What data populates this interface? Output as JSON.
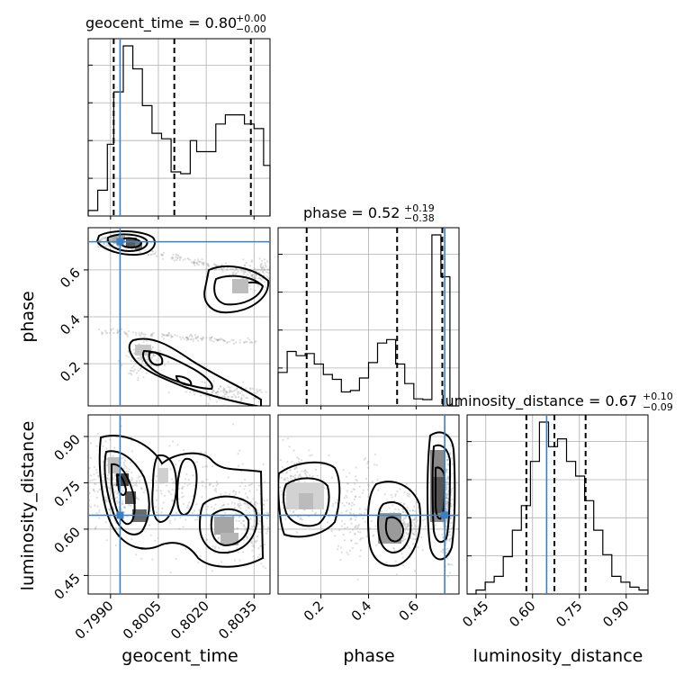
{
  "chart_data": {
    "type": "corner",
    "parameters": [
      "geocent_time",
      "phase",
      "luminosity_distance"
    ],
    "axis_labels": [
      "geocent_time",
      "phase",
      "luminosity_distance"
    ],
    "colors": {
      "truth": "#3b7fc4",
      "contour": "#000000",
      "grid": "#b0b0b0",
      "points": "#a0a0a0"
    },
    "grid": true,
    "truths": {
      "geocent_time": 0.7993,
      "phase": 0.72,
      "luminosity_distance": 0.645
    },
    "ranges": {
      "geocent_time": [
        0.7983,
        0.804
      ],
      "phase": [
        0.02,
        0.78
      ],
      "luminosity_distance": [
        0.39,
        0.97
      ]
    },
    "ticks": {
      "geocent_time": [
        "0.7990",
        "0.8005",
        "0.8020",
        "0.8035"
      ],
      "phase": [
        "0.2",
        "0.4",
        "0.6"
      ],
      "luminosity_distance": [
        "0.45",
        "0.60",
        "0.75",
        "0.90"
      ]
    },
    "titles": [
      {
        "param": "geocent_time",
        "name": "geocent_time",
        "median": "0.80",
        "plus": "+0.00",
        "minus": "−0.00"
      },
      {
        "param": "phase",
        "name": "phase",
        "median": "0.52",
        "plus": "+0.19",
        "minus": "−0.38"
      },
      {
        "param": "luminosity_distance",
        "name": "luminosity_distance",
        "median": "0.67",
        "plus": "+0.10",
        "minus": "−0.09"
      }
    ],
    "quantiles": {
      "geocent_time": [
        0.7991,
        0.801,
        0.8034
      ],
      "phase": [
        0.14,
        0.52,
        0.71
      ],
      "luminosity_distance": [
        0.58,
        0.67,
        0.77
      ]
    },
    "histograms": {
      "geocent_time": {
        "edges": [
          0.7983,
          0.7986,
          0.7989,
          0.7991,
          0.7994,
          0.7997,
          0.8,
          0.8003,
          0.8006,
          0.8009,
          0.8012,
          0.8015,
          0.8017,
          0.802,
          0.8023,
          0.8026,
          0.8029,
          0.8032,
          0.8035,
          0.8038,
          0.804
        ],
        "counts": [
          6,
          28,
          78,
          135,
          185,
          160,
          120,
          90,
          84,
          48,
          46,
          82,
          70,
          70,
          100,
          110,
          110,
          100,
          95,
          55
        ]
      },
      "phase": {
        "edges": [
          0.02,
          0.058,
          0.096,
          0.134,
          0.172,
          0.21,
          0.248,
          0.286,
          0.324,
          0.362,
          0.4,
          0.438,
          0.476,
          0.514,
          0.552,
          0.59,
          0.628,
          0.666,
          0.704,
          0.742,
          0.78
        ],
        "counts": [
          48,
          78,
          72,
          75,
          60,
          45,
          38,
          20,
          22,
          40,
          62,
          90,
          95,
          60,
          32,
          10,
          9,
          245,
          185,
          0
        ]
      },
      "luminosity_distance": {
        "edges": [
          0.39,
          0.419,
          0.448,
          0.477,
          0.506,
          0.535,
          0.564,
          0.593,
          0.622,
          0.651,
          0.68,
          0.709,
          0.738,
          0.767,
          0.796,
          0.825,
          0.854,
          0.883,
          0.912,
          0.941,
          0.97
        ],
        "counts": [
          0,
          4,
          12,
          18,
          38,
          65,
          90,
          135,
          175,
          150,
          158,
          135,
          120,
          95,
          65,
          40,
          18,
          12,
          7,
          4
        ]
      }
    }
  }
}
